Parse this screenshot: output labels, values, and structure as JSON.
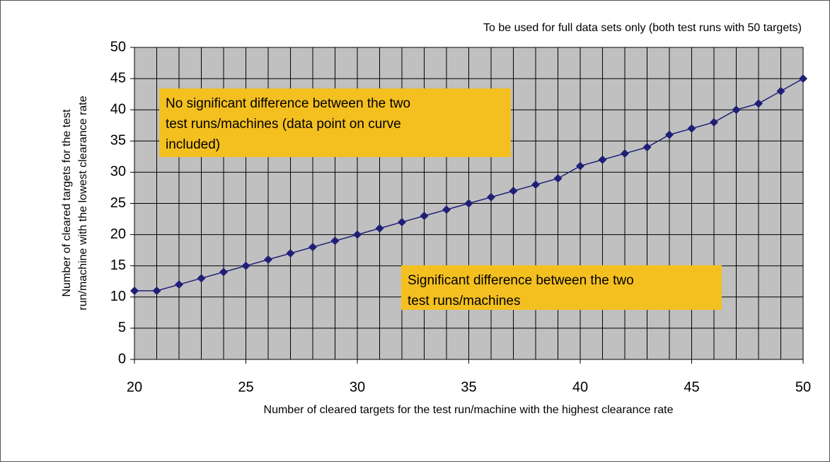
{
  "chart_data": {
    "type": "line",
    "title": "To be used for full data sets only (both test runs with 50 targets)",
    "x_label": "Number of cleared targets for the test run/machine with the highest clearance rate",
    "y_label": [
      "Number of cleared targets for the test",
      "run/machine with the lowest clearance rate"
    ],
    "x": [
      20,
      21,
      22,
      23,
      24,
      25,
      26,
      27,
      28,
      29,
      30,
      31,
      32,
      33,
      34,
      35,
      36,
      37,
      38,
      39,
      40,
      41,
      42,
      43,
      44,
      45,
      46,
      47,
      48,
      49,
      50
    ],
    "values": [
      11,
      11,
      12,
      13,
      14,
      15,
      16,
      17,
      18,
      19,
      20,
      21,
      22,
      23,
      24,
      25,
      26,
      27,
      28,
      29,
      31,
      32,
      33,
      34,
      36,
      37,
      38,
      40,
      41,
      43,
      45
    ],
    "color": "#1f1f78",
    "xlim": [
      20,
      50
    ],
    "ylim": [
      0,
      50
    ],
    "xticks": [
      20,
      25,
      30,
      35,
      40,
      45,
      50
    ],
    "yticks": [
      0,
      5,
      10,
      15,
      20,
      25,
      30,
      35,
      40,
      45,
      50
    ],
    "grid": true,
    "plot_color": "#c0c0c0",
    "annotations": [
      {
        "lines": [
          "No significant difference between the two",
          "test runs/machines (data point on curve",
          "included)"
        ],
        "color": "#f4c020"
      },
      {
        "lines": [
          "Significant difference between the two",
          "test runs/machines"
        ],
        "color": "#f4c020"
      }
    ]
  }
}
